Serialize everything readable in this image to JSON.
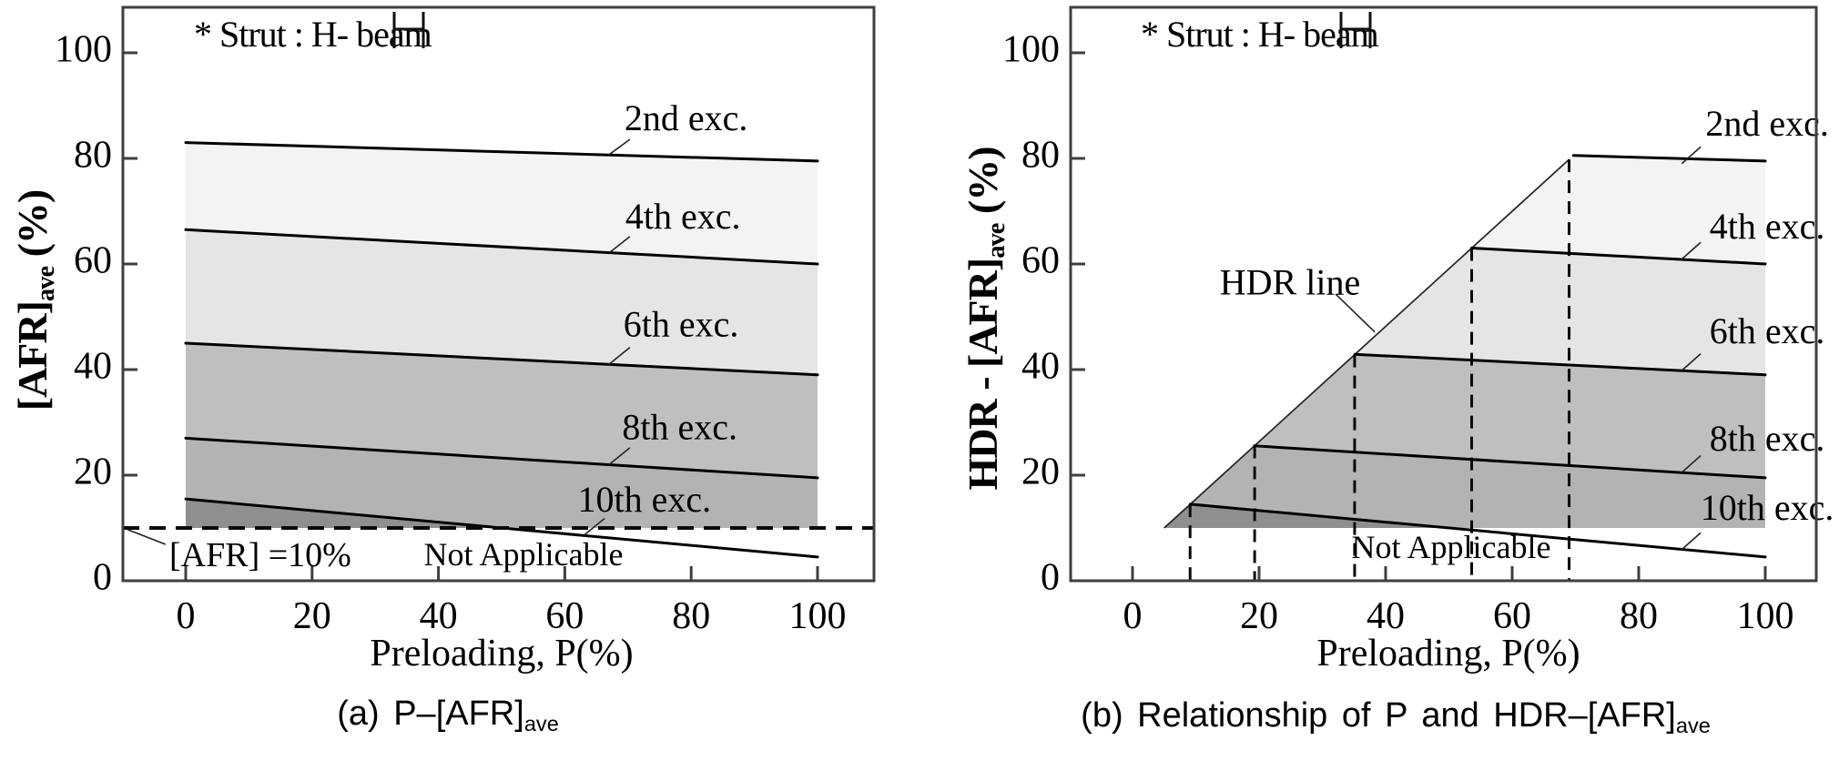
{
  "chart_data": [
    {
      "id": "a",
      "type": "area",
      "caption": {
        "text": "(a) P–[AFR]",
        "sub": "ave"
      },
      "xlabel": "Preloading, P(%)",
      "ylabel": {
        "text": "[AFR]",
        "sub": "ave",
        "post": " (%)"
      },
      "annotation": "* Strut : H- beam",
      "annotation_icon": "h-beam-icon",
      "x_ticks": [
        0,
        20,
        40,
        60,
        80,
        100
      ],
      "y_ticks": [
        0,
        20,
        40,
        60,
        80,
        100
      ],
      "xlim": [
        -10,
        109
      ],
      "ylim": [
        0,
        108.6
      ],
      "grid": false,
      "lines": [
        {
          "label": "2nd exc.",
          "x": [
            0,
            100
          ],
          "y": [
            83.0,
            79.5
          ],
          "label_at": {
            "x": 79.2,
            "y": 86.9
          },
          "leader": [
            67.0,
            80.7,
            70.3,
            83.6
          ]
        },
        {
          "label": "4th exc.",
          "x": [
            0,
            100
          ],
          "y": [
            66.5,
            60.0
          ],
          "label_at": {
            "x": 78.7,
            "y": 68.3
          },
          "leader": [
            67.0,
            62.1,
            70.3,
            65.2
          ]
        },
        {
          "label": "6th exc.",
          "x": [
            0,
            100
          ],
          "y": [
            45.0,
            39.0
          ],
          "label_at": {
            "x": 78.4,
            "y": 47.9
          },
          "leader": [
            67.0,
            41.0,
            70.3,
            44.2
          ]
        },
        {
          "label": "8th exc.",
          "x": [
            0,
            100
          ],
          "y": [
            27.0,
            19.5
          ],
          "label_at": {
            "x": 78.2,
            "y": 28.4
          },
          "leader": [
            67.0,
            22.0,
            70.3,
            25.2
          ]
        },
        {
          "label": "10th exc.",
          "x": [
            0,
            100
          ],
          "y": [
            15.5,
            4.5
          ],
          "label_at": {
            "x": 72.6,
            "y": 14.7
          },
          "leader": [
            63.0,
            8.6,
            66.3,
            11.8
          ]
        }
      ],
      "band_colors": [
        "#f3f3f3",
        "#e5e5e5",
        "#bfbfbf",
        "#b3b3b3",
        "#8f8f8f"
      ],
      "line_color": "#000000",
      "axis_color": "#3f3f3f",
      "afr_floor": {
        "y": 10,
        "label": "[AFR] =10%",
        "leader": [
          -9.2,
          9.7,
          -3.2,
          6.9
        ]
      },
      "not_applicable": {
        "text": "Not Applicable",
        "at": {
          "x": 53.5,
          "y": 5.2
        }
      }
    },
    {
      "id": "b",
      "type": "area",
      "caption": {
        "text": "(b) Relationship of P and HDR–[AFR]",
        "sub": "ave"
      },
      "xlabel": "Preloading, P(%)",
      "ylabel": {
        "text": "HDR - [AFR]",
        "sub": "ave",
        "post": " (%)"
      },
      "annotation": "* Strut : H- beam",
      "annotation_icon": "h-beam-icon",
      "x_ticks": [
        0,
        20,
        40,
        60,
        80,
        100
      ],
      "y_ticks": [
        0,
        20,
        40,
        60,
        80,
        100
      ],
      "xlim": [
        -10,
        108
      ],
      "ylim": [
        0,
        108.6
      ],
      "grid": false,
      "lines": [
        {
          "label": "2nd exc.",
          "x": [
            0,
            100
          ],
          "y": [
            83.0,
            79.5
          ],
          "label_at": {
            "x": 100.3,
            "y": 85.9
          },
          "leader": [
            86.8,
            79.0,
            89.8,
            82.2
          ]
        },
        {
          "label": "4th exc.",
          "x": [
            0,
            100
          ],
          "y": [
            66.5,
            60.0
          ],
          "label_at": {
            "x": 100.3,
            "y": 66.4
          },
          "leader": [
            86.8,
            60.9,
            89.8,
            64.1
          ]
        },
        {
          "label": "6th exc.",
          "x": [
            0,
            100
          ],
          "y": [
            45.0,
            39.0
          ],
          "label_at": {
            "x": 100.3,
            "y": 46.6
          },
          "leader": [
            86.8,
            39.8,
            89.8,
            43.0
          ]
        },
        {
          "label": "8th exc.",
          "x": [
            0,
            100
          ],
          "y": [
            27.0,
            19.5
          ],
          "label_at": {
            "x": 100.3,
            "y": 26.2
          },
          "leader": [
            86.8,
            20.5,
            89.8,
            23.7
          ]
        },
        {
          "label": "10th exc.",
          "x": [
            0,
            100
          ],
          "y": [
            15.5,
            4.5
          ],
          "label_at": {
            "x": 100.3,
            "y": 13.1
          },
          "leader": [
            86.8,
            5.9,
            89.8,
            9.1
          ]
        }
      ],
      "band_colors": [
        "#f3f3f3",
        "#e5e5e5",
        "#bfbfbf",
        "#b3b3b3",
        "#8f8f8f"
      ],
      "line_color": "#000000",
      "axis_color": "#3f3f3f",
      "afr_floor": {
        "y": 10
      },
      "hdr_line": {
        "label": "HDR line",
        "x": [
          5,
          69
        ],
        "y": [
          10,
          79.8
        ],
        "label_at": {
          "x": 24.9,
          "y": 56.2
        },
        "leader": [
          32.1,
          54.3,
          38.3,
          47.1
        ],
        "dashed_drops_x": [
          9.1,
          19.3,
          35.1,
          53.6,
          69.0
        ]
      },
      "not_applicable": {
        "text": "Not Applicable",
        "at": {
          "x": 50.4,
          "y": 6.5
        }
      }
    }
  ]
}
